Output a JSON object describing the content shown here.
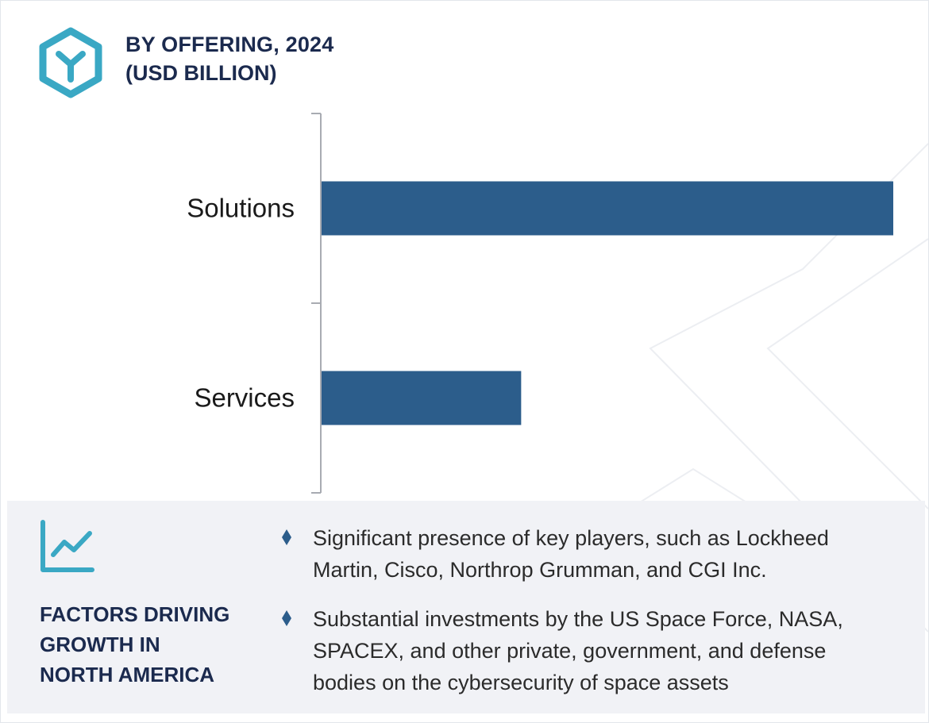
{
  "header": {
    "title": "BY OFFERING, 2024",
    "subtitle": "(USD BILLION)",
    "logo_icon": "hexagon-y-logo-icon"
  },
  "colors": {
    "bar": "#2c5d8b",
    "heading": "#1b2a4e",
    "accent": "#3aa8c4",
    "panel_bg": "#f1f2f6",
    "axis": "#a8abb2"
  },
  "chart_data": {
    "type": "bar",
    "orientation": "horizontal",
    "categories": [
      "Solutions",
      "Services"
    ],
    "values": [
      100,
      35
    ],
    "value_note": "no value axis or data labels shown; relative bar lengths only",
    "xlim": [
      0,
      100
    ],
    "grid": false,
    "legend": "none"
  },
  "factors": {
    "icon": "trend-line-chart-icon",
    "heading_lines": [
      "FACTORS DRIVING",
      "GROWTH IN",
      "NORTH AMERICA"
    ],
    "bullet_icon": "diamond-bullet-icon",
    "items": [
      {
        "lines": [
          "Significant presence of key players, such as Lockheed",
          "Martin, Cisco, Northrop Grumman, and CGI Inc."
        ]
      },
      {
        "lines": [
          "Substantial investments by the US Space Force, NASA,",
          "SPACEX, and other private, government, and defense",
          "bodies on the cybersecurity of space assets"
        ]
      }
    ]
  }
}
